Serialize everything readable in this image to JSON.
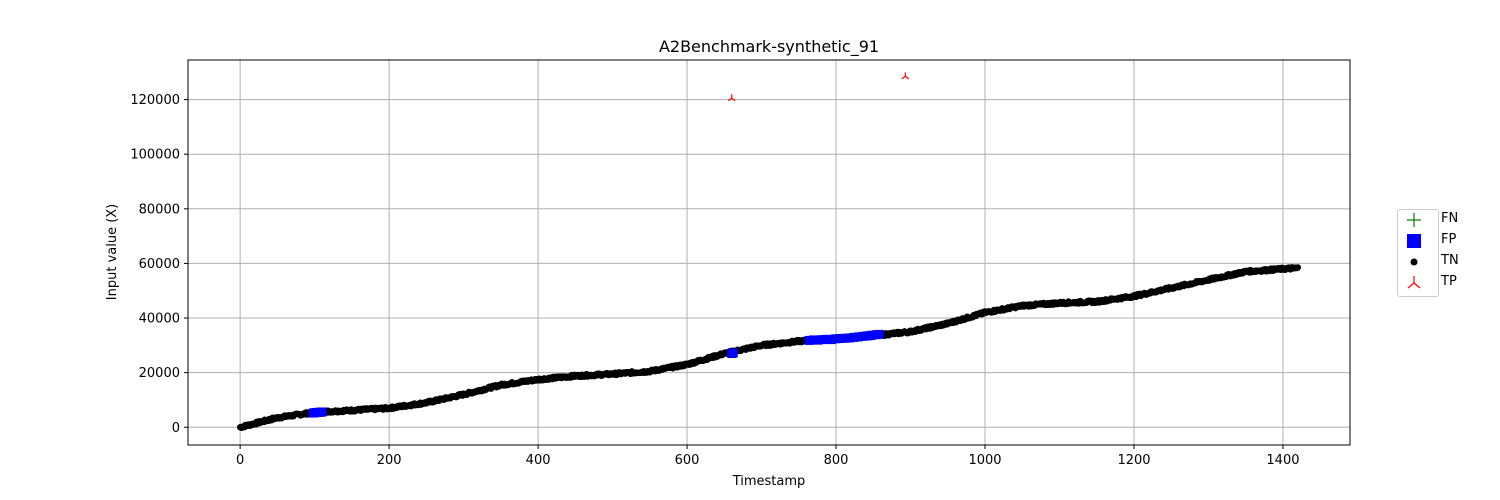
{
  "chart_data": {
    "type": "scatter",
    "title": "A2Benchmark-synthetic_91",
    "xlabel": "Timestamp",
    "ylabel": "Input value (X)",
    "xlim": [
      -70,
      1490
    ],
    "ylim": [
      -6500,
      134500
    ],
    "xticks": [
      0,
      200,
      400,
      600,
      800,
      1000,
      1200,
      1400
    ],
    "yticks": [
      0,
      20000,
      40000,
      60000,
      80000,
      100000,
      120000
    ],
    "grid": true,
    "legend_position": "center-right",
    "legend": [
      {
        "label": "FN",
        "marker": "plus",
        "color": "#008000"
      },
      {
        "label": "FP",
        "marker": "square",
        "color": "#0000ff"
      },
      {
        "label": "TN",
        "marker": "circle",
        "color": "#000000"
      },
      {
        "label": "TP",
        "marker": "tri_down",
        "color": "#ff0000"
      }
    ],
    "series": [
      {
        "name": "TN",
        "color": "#000000",
        "trend_x": [
          0,
          50,
          100,
          150,
          200,
          250,
          300,
          350,
          400,
          450,
          500,
          550,
          600,
          650,
          700,
          750,
          800,
          850,
          900,
          950,
          1000,
          1050,
          1100,
          1150,
          1200,
          1250,
          1300,
          1350,
          1400,
          1420
        ],
        "trend_y": [
          0,
          3500,
          5500,
          6200,
          7000,
          9000,
          12000,
          15500,
          17500,
          18800,
          19500,
          20500,
          23000,
          27000,
          30000,
          31500,
          32500,
          33500,
          35000,
          38000,
          42000,
          44500,
          45500,
          46000,
          48000,
          51000,
          54000,
          57000,
          58000,
          58300
        ]
      },
      {
        "name": "FP",
        "color": "#0000ff",
        "x": [
          98,
          100,
          102,
          104,
          106,
          108,
          110,
          660,
          662,
          764,
          770,
          776,
          782,
          788,
          794,
          800,
          806,
          812,
          818,
          824,
          830,
          836,
          842,
          848,
          854,
          858
        ],
        "y": [
          5200,
          5300,
          5400,
          5400,
          5500,
          5500,
          5600,
          27000,
          27200,
          31800,
          32000,
          31900,
          32100,
          32200,
          32100,
          32400,
          32500,
          32600,
          32700,
          32900,
          33100,
          33300,
          33500,
          33700,
          33900,
          34000
        ]
      },
      {
        "name": "TP",
        "color": "#ff0000",
        "x": [
          660,
          893
        ],
        "y": [
          120500,
          128500
        ]
      },
      {
        "name": "FN",
        "color": "#008000",
        "x": [],
        "y": []
      }
    ]
  }
}
